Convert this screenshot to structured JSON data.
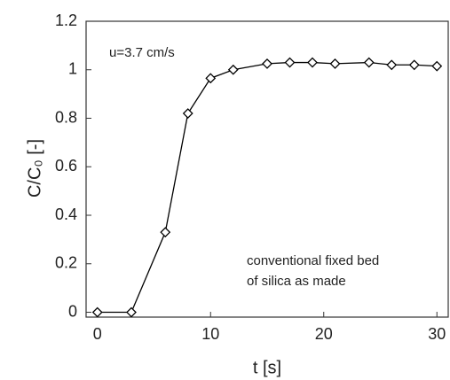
{
  "chart_data": {
    "type": "line",
    "xlabel": "t [s]",
    "ylabel": "C/C₀ [-]",
    "annotations": [
      "u=3.7 cm/s",
      "conventional fixed bed",
      "of silica as made"
    ],
    "x": [
      0,
      3,
      6,
      8,
      10,
      12,
      15,
      17,
      19,
      21,
      24,
      26,
      28,
      30
    ],
    "series": [
      {
        "color": "#000000",
        "values": [
          0,
          0,
          0.33,
          0.82,
          0.965,
          1.0,
          1.025,
          1.03,
          1.03,
          1.025,
          1.03,
          1.02,
          1.02,
          1.015
        ]
      }
    ],
    "xlim": [
      -1,
      31
    ],
    "ylim": [
      -0.02,
      1.2
    ],
    "xticks": [
      0,
      10,
      20,
      30
    ],
    "yticks": [
      0,
      0.2,
      0.4,
      0.6,
      0.8,
      1,
      1.2
    ],
    "marker": "diamond",
    "grid": false
  }
}
